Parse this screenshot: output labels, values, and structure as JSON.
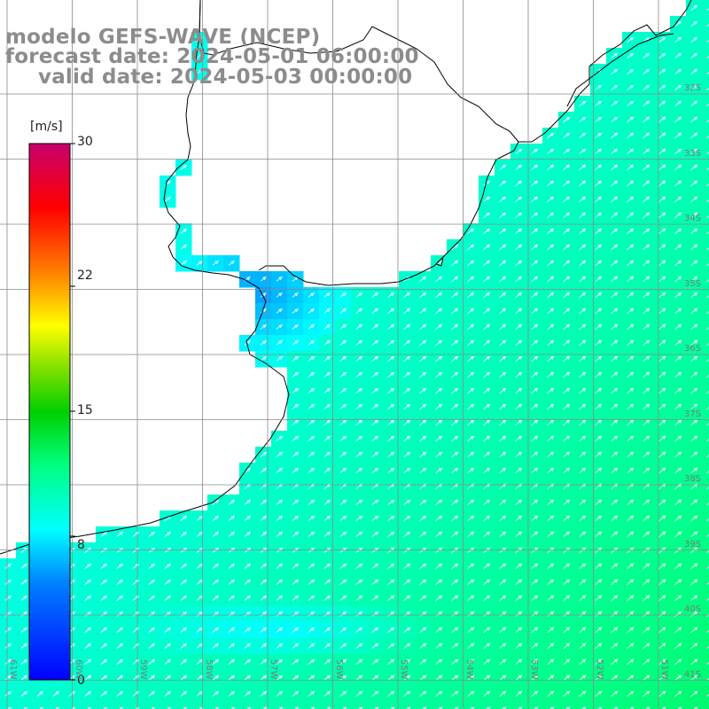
{
  "header": {
    "model_line": "modelo GEFS-WAVE (NCEP)",
    "forecast_line": "forecast date: 2024-05-01 06:00:00",
    "valid_line": "valid date: 2024-05-03 00:00:00"
  },
  "colorbar": {
    "unit": "[m/s]",
    "ticks": [
      "30",
      "22",
      "15",
      "8",
      "0"
    ],
    "tick_values": [
      30,
      22,
      15,
      8,
      0
    ],
    "min": 0,
    "max": 30,
    "colors": [
      "#0000ff",
      "#00c8ff",
      "#00ffff",
      "#00e040",
      "#ffff00",
      "#ff8000",
      "#ff0000",
      "#c8006e"
    ]
  },
  "grid": {
    "lat_labels": [
      "32S",
      "33S",
      "34S",
      "35S",
      "36S",
      "37S",
      "38S",
      "39S",
      "40S",
      "41S"
    ],
    "lon_labels": [
      "61W",
      "60W",
      "59W",
      "58W",
      "57W",
      "56W",
      "55W",
      "54W",
      "53W",
      "52W",
      "51W"
    ]
  },
  "field": {
    "variable": "wind speed",
    "wind_direction": "from southwest",
    "regions": [
      {
        "area": "Rio de la Plata estuary",
        "speed_ms": 6
      },
      {
        "area": "Uruguay coast",
        "speed_ms": 9
      },
      {
        "area": "Buenos Aires coast",
        "speed_ms": 9
      },
      {
        "area": "open ocean south-east",
        "speed_ms": 13
      }
    ]
  }
}
